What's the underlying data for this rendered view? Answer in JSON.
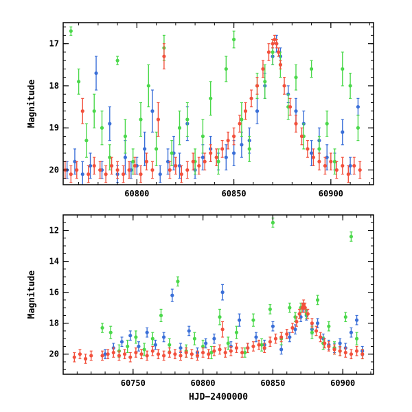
{
  "chart_data": [
    {
      "type": "scatter",
      "xlabel": "",
      "ylabel": "Magnitude",
      "xlim": [
        60762,
        60922
      ],
      "ylim": [
        20.35,
        16.5
      ],
      "y_inverted": true,
      "x_ticks": [
        60800,
        60850,
        60900
      ],
      "x_tick_labels": [
        "60800",
        "60850",
        "60900"
      ],
      "y_ticks": [
        17,
        18,
        19,
        20
      ],
      "y_tick_labels": [
        "17",
        "18",
        "19",
        "20"
      ],
      "x_minor_step": 10,
      "y_minor_step": 0.2,
      "grid": false,
      "legend": "none",
      "series": [
        {
          "color": "#3a6fd8",
          "x": [
            60764,
            60768,
            60772,
            60776,
            60779,
            60782,
            60786,
            60790,
            60794,
            60797,
            60800,
            60804,
            60808,
            60812,
            60816,
            60819,
            60822,
            60826,
            60830,
            60834,
            60838,
            60842,
            60846,
            60850,
            60854,
            60858,
            60862,
            60866,
            60870,
            60872,
            60874,
            60878,
            60882,
            60886,
            60890,
            60894,
            60898,
            60902,
            60906,
            60910,
            60914
          ],
          "y": [
            20.0,
            19.8,
            20.1,
            19.9,
            17.7,
            20.0,
            18.9,
            20.1,
            19.7,
            20.0,
            19.9,
            19.5,
            18.6,
            20.1,
            19.8,
            19.6,
            19.9,
            18.9,
            20.0,
            19.7,
            19.5,
            19.8,
            19.7,
            19.6,
            19.4,
            19.3,
            18.6,
            18.0,
            17.3,
            17.0,
            17.3,
            18.2,
            18.6,
            18.9,
            19.6,
            19.3,
            19.7,
            19.8,
            19.1,
            19.9,
            18.5
          ],
          "err": [
            0.2,
            0.3,
            0.3,
            0.3,
            0.4,
            0.2,
            0.4,
            0.2,
            0.4,
            0.2,
            0.2,
            0.4,
            0.5,
            0.2,
            0.3,
            0.4,
            0.3,
            0.4,
            0.2,
            0.3,
            0.3,
            0.2,
            0.3,
            0.3,
            0.3,
            0.3,
            0.3,
            0.3,
            0.2,
            0.2,
            0.2,
            0.2,
            0.3,
            0.3,
            0.3,
            0.3,
            0.3,
            0.2,
            0.3,
            0.2,
            0.2
          ]
        },
        {
          "color": "#4bd84b",
          "x": [
            60766,
            60770,
            60774,
            60778,
            60782,
            60786,
            60790,
            60794,
            60798,
            60802,
            60806,
            60810,
            60814,
            60818,
            60822,
            60826,
            60830,
            60834,
            60838,
            60842,
            60846,
            60850,
            60854,
            60858,
            60862,
            60866,
            60870,
            60874,
            60878,
            60882,
            60886,
            60890,
            60894,
            60898,
            60902,
            60906,
            60910,
            60914
          ],
          "y": [
            16.7,
            17.9,
            19.3,
            18.6,
            19.0,
            19.7,
            17.4,
            19.2,
            19.8,
            18.8,
            18.0,
            19.5,
            17.1,
            19.6,
            19.0,
            18.8,
            19.8,
            19.2,
            18.3,
            19.8,
            17.6,
            16.9,
            18.8,
            19.5,
            18.0,
            17.9,
            17.2,
            17.5,
            18.5,
            17.8,
            19.2,
            17.6,
            19.5,
            18.9,
            19.8,
            17.6,
            18.0,
            19.0
          ],
          "err": [
            0.1,
            0.3,
            0.4,
            0.4,
            0.4,
            0.3,
            0.1,
            0.4,
            0.3,
            0.4,
            0.5,
            0.4,
            0.3,
            0.3,
            0.4,
            0.4,
            0.3,
            0.4,
            0.4,
            0.3,
            0.3,
            0.2,
            0.4,
            0.3,
            0.3,
            0.4,
            0.3,
            0.3,
            0.3,
            0.3,
            0.3,
            0.2,
            0.3,
            0.3,
            0.3,
            0.4,
            0.3,
            0.3
          ]
        },
        {
          "color": "#f2503c",
          "x": [
            60763,
            60766,
            60769,
            60772,
            60775,
            60778,
            60781,
            60784,
            60787,
            60790,
            60793,
            60796,
            60799,
            60802,
            60805,
            60808,
            60811,
            60814,
            60817,
            60820,
            60823,
            60826,
            60829,
            60832,
            60835,
            60838,
            60841,
            60844,
            60847,
            60850,
            60853,
            60856,
            60859,
            60862,
            60865,
            60868,
            60870,
            60871,
            60872,
            60873,
            60874,
            60876,
            60879,
            60882,
            60885,
            60888,
            60891,
            60894,
            60897,
            60900,
            60903,
            60906,
            60909,
            60912,
            60915
          ],
          "y": [
            20.0,
            20.1,
            20.0,
            18.6,
            20.1,
            19.9,
            20.0,
            20.1,
            19.9,
            20.0,
            20.1,
            20.0,
            19.9,
            20.1,
            19.8,
            20.0,
            18.8,
            17.3,
            20.0,
            19.9,
            20.1,
            20.0,
            19.8,
            19.9,
            19.8,
            19.6,
            19.7,
            19.5,
            19.3,
            19.2,
            18.9,
            18.6,
            18.3,
            18.0,
            17.6,
            17.2,
            17.0,
            16.9,
            17.0,
            17.2,
            17.5,
            18.0,
            18.5,
            18.9,
            19.2,
            19.5,
            19.7,
            19.8,
            19.9,
            19.8,
            20.0,
            19.9,
            20.1,
            19.9,
            20.0
          ],
          "err": [
            0.2,
            0.2,
            0.2,
            0.3,
            0.2,
            0.2,
            0.2,
            0.2,
            0.2,
            0.2,
            0.2,
            0.2,
            0.2,
            0.2,
            0.2,
            0.2,
            0.4,
            0.3,
            0.2,
            0.2,
            0.2,
            0.2,
            0.2,
            0.2,
            0.2,
            0.2,
            0.2,
            0.2,
            0.2,
            0.2,
            0.2,
            0.2,
            0.2,
            0.2,
            0.2,
            0.2,
            0.1,
            0.1,
            0.1,
            0.1,
            0.1,
            0.2,
            0.2,
            0.2,
            0.2,
            0.2,
            0.2,
            0.2,
            0.2,
            0.2,
            0.2,
            0.2,
            0.2,
            0.2,
            0.2
          ]
        }
      ]
    },
    {
      "type": "scatter",
      "xlabel": "HJD−2400000",
      "ylabel": "Magnitude",
      "xlim": [
        60700,
        60922
      ],
      "ylim": [
        21.3,
        11.0
      ],
      "y_inverted": true,
      "x_ticks": [
        60750,
        60800,
        60850,
        60900
      ],
      "x_tick_labels": [
        "60750",
        "60800",
        "60850",
        "60900"
      ],
      "y_ticks": [
        12,
        14,
        16,
        18,
        20
      ],
      "y_tick_labels": [
        "12",
        "14",
        "16",
        "18",
        "20"
      ],
      "x_minor_step": 10,
      "y_minor_step": 0.5,
      "grid": false,
      "legend": "none",
      "series": [
        {
          "color": "#3a6fd8",
          "x": [
            60730,
            60736,
            60742,
            60748,
            60754,
            60760,
            60766,
            60772,
            60778,
            60784,
            60790,
            60796,
            60802,
            60808,
            60814,
            60820,
            60826,
            60832,
            60838,
            60844,
            60850,
            60856,
            60862,
            60866,
            60870,
            60872,
            60874,
            60878,
            60882,
            60886,
            60890,
            60894,
            60898,
            60902,
            60906,
            60910,
            60914
          ],
          "y": [
            20.0,
            19.6,
            19.2,
            18.8,
            19.5,
            18.6,
            19.4,
            18.9,
            16.2,
            19.6,
            18.5,
            19.9,
            19.3,
            19.0,
            16.0,
            19.5,
            17.8,
            19.6,
            18.9,
            19.4,
            18.2,
            19.7,
            18.9,
            18.4,
            17.6,
            17.0,
            17.5,
            18.4,
            18.0,
            19.0,
            19.4,
            19.6,
            19.3,
            19.6,
            18.6,
            17.8,
            19.8
          ],
          "err": [
            0.3,
            0.3,
            0.3,
            0.3,
            0.3,
            0.3,
            0.3,
            0.3,
            0.4,
            0.3,
            0.3,
            0.3,
            0.3,
            0.3,
            0.5,
            0.3,
            0.4,
            0.3,
            0.3,
            0.3,
            0.3,
            0.3,
            0.3,
            0.3,
            0.3,
            0.3,
            0.3,
            0.3,
            0.3,
            0.3,
            0.3,
            0.3,
            0.3,
            0.3,
            0.3,
            0.3,
            0.3
          ]
        },
        {
          "color": "#4bd84b",
          "x": [
            60728,
            60734,
            60740,
            60746,
            60752,
            60758,
            60764,
            60770,
            60776,
            60782,
            60788,
            60794,
            60800,
            60806,
            60812,
            60818,
            60824,
            60830,
            60836,
            60842,
            60848,
            60850,
            60856,
            60862,
            60866,
            60870,
            60874,
            60878,
            60882,
            60886,
            60890,
            60894,
            60898,
            60902,
            60906,
            60910,
            60914
          ],
          "y": [
            18.3,
            18.6,
            19.8,
            19.5,
            18.9,
            19.7,
            19.0,
            17.5,
            19.4,
            15.3,
            19.8,
            19.0,
            19.5,
            19.9,
            17.6,
            19.3,
            18.6,
            19.9,
            17.8,
            19.4,
            17.1,
            11.5,
            19.0,
            17.0,
            17.6,
            17.0,
            17.4,
            18.6,
            16.5,
            19.3,
            18.2,
            19.6,
            19.8,
            17.6,
            12.4,
            19.0,
            20.0
          ],
          "err": [
            0.3,
            0.4,
            0.4,
            0.4,
            0.4,
            0.4,
            0.4,
            0.4,
            0.4,
            0.3,
            0.4,
            0.4,
            0.4,
            0.4,
            0.5,
            0.4,
            0.4,
            0.3,
            0.4,
            0.4,
            0.3,
            0.3,
            0.4,
            0.3,
            0.3,
            0.3,
            0.3,
            0.4,
            0.3,
            0.4,
            0.3,
            0.4,
            0.3,
            0.3,
            0.3,
            0.4,
            0.3
          ]
        },
        {
          "color": "#f2503c",
          "x": [
            60708,
            60712,
            60716,
            60720,
            60728,
            60732,
            60736,
            60740,
            60744,
            60748,
            60752,
            60756,
            60760,
            60764,
            60768,
            60772,
            60776,
            60780,
            60784,
            60788,
            60792,
            60796,
            60800,
            60804,
            60808,
            60812,
            60814,
            60816,
            60820,
            60824,
            60828,
            60832,
            60836,
            60840,
            60844,
            60848,
            60852,
            60856,
            60860,
            60864,
            60867,
            60869,
            60871,
            60872,
            60873,
            60875,
            60878,
            60881,
            60884,
            60887,
            60890,
            60894,
            60898,
            60902,
            60906,
            60910,
            60914
          ],
          "y": [
            20.2,
            20.0,
            20.3,
            20.1,
            20.1,
            20.0,
            19.9,
            20.1,
            20.0,
            20.2,
            19.9,
            20.0,
            20.1,
            19.8,
            20.0,
            20.1,
            19.9,
            20.0,
            20.1,
            19.9,
            20.0,
            20.1,
            19.9,
            20.0,
            19.8,
            19.7,
            18.4,
            19.9,
            19.8,
            19.6,
            19.9,
            19.6,
            19.5,
            19.4,
            19.6,
            19.2,
            19.0,
            18.9,
            18.7,
            18.3,
            17.9,
            17.4,
            17.0,
            16.8,
            17.0,
            17.4,
            18.0,
            18.5,
            18.9,
            19.3,
            19.5,
            19.7,
            19.8,
            19.9,
            20.0,
            19.8,
            20.0
          ],
          "err": [
            0.3,
            0.3,
            0.3,
            0.3,
            0.3,
            0.3,
            0.3,
            0.3,
            0.3,
            0.3,
            0.3,
            0.3,
            0.3,
            0.3,
            0.3,
            0.3,
            0.3,
            0.3,
            0.3,
            0.3,
            0.3,
            0.3,
            0.3,
            0.3,
            0.3,
            0.3,
            0.5,
            0.3,
            0.3,
            0.3,
            0.3,
            0.3,
            0.3,
            0.3,
            0.3,
            0.3,
            0.3,
            0.3,
            0.3,
            0.3,
            0.3,
            0.3,
            0.3,
            0.3,
            0.3,
            0.3,
            0.3,
            0.3,
            0.3,
            0.3,
            0.3,
            0.3,
            0.3,
            0.3,
            0.3,
            0.3,
            0.3
          ]
        }
      ]
    }
  ]
}
